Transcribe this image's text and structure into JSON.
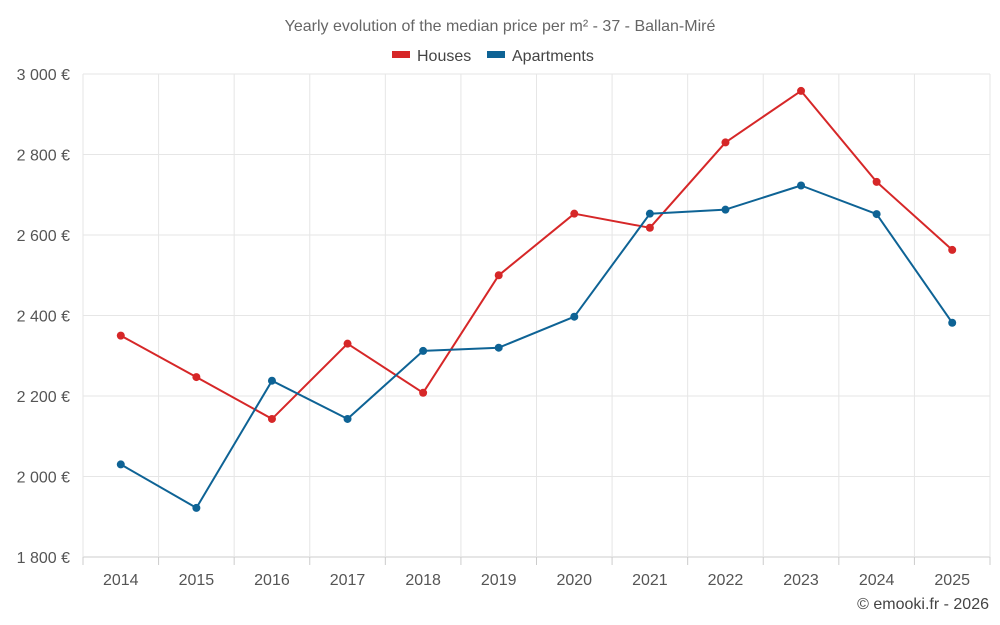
{
  "chart_data": {
    "type": "line",
    "title": "Yearly evolution of the median price per m² - 37 - Ballan-Miré",
    "categories": [
      "2014",
      "2015",
      "2016",
      "2017",
      "2018",
      "2019",
      "2020",
      "2021",
      "2022",
      "2023",
      "2024",
      "2025"
    ],
    "series": [
      {
        "name": "Houses",
        "color": "#d62728",
        "values": [
          2350,
          2247,
          2143,
          2330,
          2208,
          2500,
          2653,
          2618,
          2830,
          2958,
          2732,
          2563
        ]
      },
      {
        "name": "Apartments",
        "color": "#0e6395",
        "values": [
          2030,
          1922,
          2238,
          2143,
          2312,
          2320,
          2397,
          2653,
          2663,
          2723,
          2652,
          2382
        ]
      }
    ],
    "ylim": [
      1800,
      3000
    ],
    "ytick_labels": [
      "1 800 €",
      "2 000 €",
      "2 200 €",
      "2 400 €",
      "2 600 €",
      "2 800 €",
      "3 000 €"
    ],
    "yticks": [
      1800,
      2000,
      2200,
      2400,
      2600,
      2800,
      3000
    ],
    "xlabel": "",
    "ylabel": "",
    "grid": true,
    "legend_position": "top-center"
  },
  "credit": "© emooki.fr - 2026"
}
